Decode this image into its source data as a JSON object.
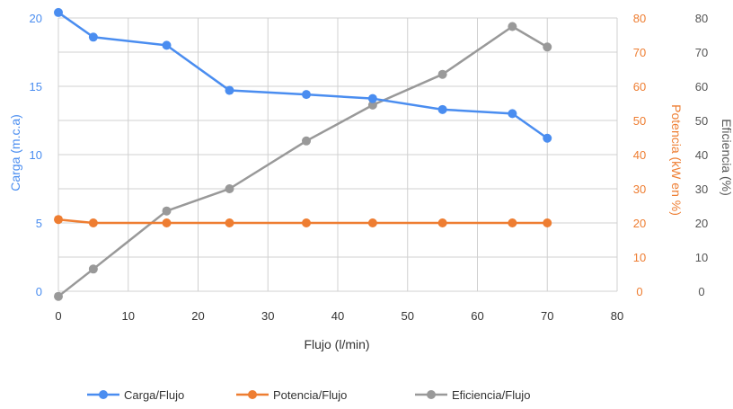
{
  "chart_data": {
    "type": "line",
    "xlabel": "Flujo (l/min)",
    "ylabel_left": "Carga (m.c.a)",
    "ylabel_right1": "Potencia (kW en %)",
    "ylabel_right2": "Eficiencia (%)",
    "xlim": [
      0,
      80
    ],
    "x_ticks": [
      "0",
      "10",
      "20",
      "30",
      "40",
      "50",
      "60",
      "70",
      "80"
    ],
    "ylim_left": [
      0,
      20
    ],
    "y_left_ticks": [
      "0",
      "5",
      "10",
      "15",
      "20"
    ],
    "ylim_right": [
      0,
      80
    ],
    "y_right1_ticks": [
      "0",
      "10",
      "20",
      "30",
      "40",
      "50",
      "60",
      "70",
      "80"
    ],
    "y_right2_ticks": [
      "0",
      "10",
      "20",
      "30",
      "40",
      "50",
      "60",
      "70",
      "80"
    ],
    "grid": true,
    "legend_position": "bottom",
    "series": [
      {
        "name": "Carga/Flujo",
        "axis": "left",
        "color": "#4a8df0",
        "points": [
          [
            0,
            20.4
          ],
          [
            5,
            18.6
          ],
          [
            15.5,
            18.0
          ],
          [
            24.5,
            14.7
          ],
          [
            35.5,
            14.4
          ],
          [
            45,
            14.1
          ],
          [
            55,
            13.3
          ],
          [
            65,
            13.0
          ],
          [
            70,
            11.2
          ]
        ]
      },
      {
        "name": "Potencia/Flujo",
        "axis": "right",
        "color": "#ee7d31",
        "points": [
          [
            0,
            21
          ],
          [
            5,
            20
          ],
          [
            15.5,
            20
          ],
          [
            24.5,
            20
          ],
          [
            35.5,
            20
          ],
          [
            45,
            20
          ],
          [
            55,
            20
          ],
          [
            65,
            20
          ],
          [
            70,
            20
          ]
        ]
      },
      {
        "name": "Eficiencia/Flujo",
        "axis": "right",
        "color": "#999999",
        "points": [
          [
            0,
            -1.5
          ],
          [
            5,
            6.5
          ],
          [
            15.5,
            23.5
          ],
          [
            24.5,
            30
          ],
          [
            35.5,
            44
          ],
          [
            45,
            54.5
          ],
          [
            55,
            63.5
          ],
          [
            65,
            77.5
          ],
          [
            70,
            71.5
          ]
        ]
      }
    ],
    "colors": {
      "left_axis": "#4a8df0",
      "right1_axis": "#ee7d31",
      "right2_axis": "#555555",
      "grid": "#d0d0d0"
    }
  }
}
